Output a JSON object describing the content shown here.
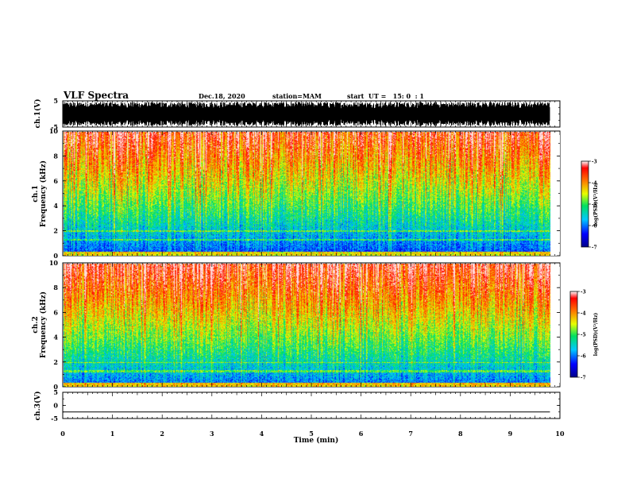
{
  "header": {
    "title": "VLF Spectra",
    "date": "Dec.18, 2020",
    "station": "station=MAM",
    "start": "start  UT =   15: 0  : 1"
  },
  "chart_data": [
    {
      "type": "line",
      "panel": "ch1-waveform",
      "ylabel": "ch.1(V)",
      "ylim": [
        -5,
        5
      ],
      "yticks": [
        "5",
        "-5"
      ],
      "xlim": [
        0,
        10
      ],
      "series": [
        {
          "description_values": "dense noise, roughly between -4.6 and 4.6"
        }
      ]
    },
    {
      "type": "heatmap",
      "panel": "ch1-spectrogram",
      "ylabel": "ch.1 Frequency (kHz)",
      "ylim": [
        0,
        10
      ],
      "yticks": [
        "0",
        "2",
        "4",
        "6",
        "8",
        "10"
      ],
      "xlim": [
        0,
        10
      ],
      "data_end_min": 9.8,
      "colorbar": {
        "label": "log(PSD)(V²/Hz)",
        "range": [
          -7,
          -3
        ],
        "ticks": [
          "-3",
          "-4",
          "-5",
          "-6",
          "-7"
        ]
      }
    },
    {
      "type": "heatmap",
      "panel": "ch2-spectrogram",
      "ylabel": "ch.2 Frequency (kHz)",
      "ylim": [
        0,
        10
      ],
      "yticks": [
        "0",
        "2",
        "4",
        "6",
        "8",
        "10"
      ],
      "xlim": [
        0,
        10
      ],
      "data_end_min": 9.8,
      "colorbar": {
        "label": "log(PSD)(V²/Hz)",
        "range": [
          -7,
          -3
        ],
        "ticks": [
          "-3",
          "-4",
          "-5",
          "-6",
          "-7"
        ]
      }
    },
    {
      "type": "line",
      "panel": "ch3-waveform",
      "ylabel": "ch.3(V)",
      "ylim": [
        -5,
        5
      ],
      "yticks": [
        "5",
        "0",
        "-5"
      ],
      "xlim": [
        0,
        10
      ],
      "series": [
        {
          "x": [
            0,
            9.8
          ],
          "y": [
            -2.5,
            -2.5
          ]
        }
      ]
    }
  ],
  "xaxis": {
    "label": "Time  (min)",
    "ticks": [
      "0",
      "1",
      "2",
      "3",
      "4",
      "5",
      "6",
      "7",
      "8",
      "9",
      "10"
    ]
  },
  "labels": {
    "ch1": "ch.1(V)",
    "ch1_spec_a": "ch.1",
    "ch1_spec_b": "Frequency (kHz)",
    "ch2_spec_a": "ch.2",
    "ch2_spec_b": "Frequency (kHz)",
    "ch3": "ch.3(V)",
    "psd": "log(PSD)(V²/Hz)"
  },
  "ticks": {
    "wave": [
      "5",
      "-5"
    ],
    "freq": [
      "0",
      "2",
      "4",
      "6",
      "8",
      "10"
    ],
    "ch3": [
      "5",
      "0",
      "-5"
    ],
    "cbar": [
      "-3",
      "-4",
      "-5",
      "-6",
      "-7"
    ]
  }
}
